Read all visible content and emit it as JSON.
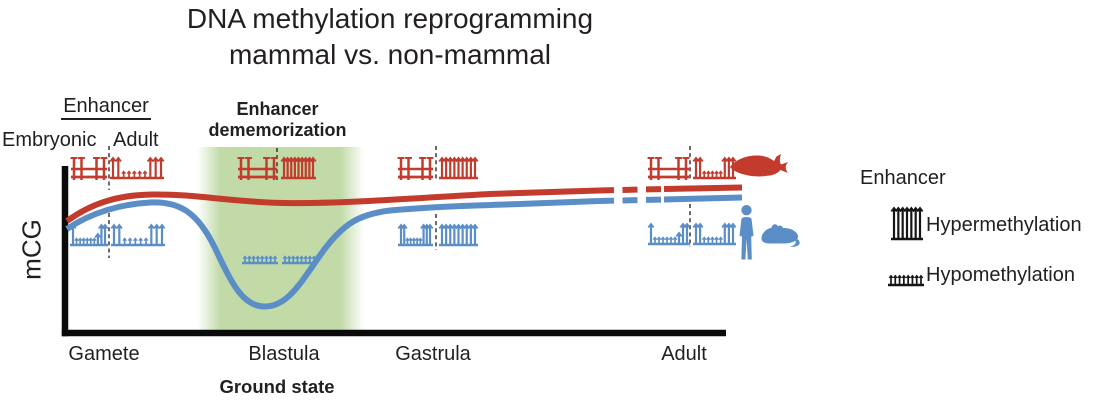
{
  "title": {
    "line1": "DNA methylation reprogramming",
    "line2": "mammal vs. non-mammal"
  },
  "colors": {
    "non_mammal": "#c23b2c",
    "mammal": "#5b8ec6",
    "highlight_green": "#b7d499",
    "axis": "#0a0a0a",
    "text": "#231f20",
    "legend_icon": "#151515"
  },
  "enhancer_header": {
    "title": "Enhancer",
    "embryonic": "Embryonic",
    "adult": "Adult"
  },
  "dememorization": {
    "line1": "Enhancer",
    "line2": "dememorization"
  },
  "y_axis_label": "mCG",
  "x_axis": {
    "ticks": [
      "Gamete",
      "Blastula",
      "Gastrula",
      "Adult"
    ],
    "annotation": "Ground state"
  },
  "legend": {
    "title": "Enhancer",
    "items": [
      {
        "icon": "hypermethylation-icon",
        "label": "Hypermethylation"
      },
      {
        "icon": "hypomethylation-icon",
        "label": "Hypomethylation"
      }
    ]
  },
  "species_icons": [
    {
      "name": "fish-icon",
      "group": "non-mammal",
      "color": "#c23b2c"
    },
    {
      "name": "human-icon",
      "group": "mammal",
      "color": "#5b8ec6"
    },
    {
      "name": "mouse-icon",
      "group": "mammal",
      "color": "#5b8ec6"
    }
  ],
  "marks": [
    {
      "stage": "Gamete",
      "lineage": "non-mammal",
      "side": "embryonic",
      "pattern": "gate"
    },
    {
      "stage": "Gamete",
      "lineage": "non-mammal",
      "side": "adult",
      "pattern": "mixed"
    },
    {
      "stage": "Gamete",
      "lineage": "mammal",
      "side": "embryonic",
      "pattern": "mixed_low"
    },
    {
      "stage": "Gamete",
      "lineage": "mammal",
      "side": "adult",
      "pattern": "mixed"
    },
    {
      "stage": "Blastula",
      "lineage": "non-mammal",
      "side": "embryonic",
      "pattern": "gate"
    },
    {
      "stage": "Blastula",
      "lineage": "non-mammal",
      "side": "adult",
      "pattern": "hyper"
    },
    {
      "stage": "Blastula",
      "lineage": "mammal",
      "side": "embryonic",
      "pattern": "hypo"
    },
    {
      "stage": "Blastula",
      "lineage": "mammal",
      "side": "adult",
      "pattern": "hypo"
    },
    {
      "stage": "Gastrula",
      "lineage": "non-mammal",
      "side": "embryonic",
      "pattern": "gate"
    },
    {
      "stage": "Gastrula",
      "lineage": "non-mammal",
      "side": "adult",
      "pattern": "hyper"
    },
    {
      "stage": "Gastrula",
      "lineage": "mammal",
      "side": "embryonic",
      "pattern": "mixed"
    },
    {
      "stage": "Gastrula",
      "lineage": "mammal",
      "side": "adult",
      "pattern": "hyper"
    },
    {
      "stage": "Adult",
      "lineage": "non-mammal",
      "side": "embryonic",
      "pattern": "gate"
    },
    {
      "stage": "Adult",
      "lineage": "non-mammal",
      "side": "adult",
      "pattern": "mixed"
    },
    {
      "stage": "Adult",
      "lineage": "mammal",
      "side": "embryonic",
      "pattern": "mixed_low"
    },
    {
      "stage": "Adult",
      "lineage": "mammal",
      "side": "adult",
      "pattern": "mixed"
    }
  ],
  "chart_data": {
    "type": "line",
    "title": "DNA methylation reprogramming mammal vs. non-mammal",
    "xlabel": "",
    "ylabel": "mCG",
    "x": [
      "Gamete",
      "Blastula",
      "Gastrula",
      "Adult"
    ],
    "series": [
      {
        "name": "non-mammal (fish)",
        "color": "#c23b2c",
        "relative_mCG": [
          0.93,
          0.9,
          0.93,
          0.96
        ],
        "style": "solid, dashed gap before Adult"
      },
      {
        "name": "mammal (human, mouse)",
        "color": "#5b8ec6",
        "relative_mCG": [
          0.88,
          0.15,
          0.85,
          0.9
        ],
        "style": "solid, dashed gap before Adult; deep demethylation dip at Blastula"
      }
    ],
    "highlight_region": {
      "label": "Enhancer dememorization",
      "around_x": "Blastula"
    },
    "grid": false,
    "legend_position": "right"
  }
}
